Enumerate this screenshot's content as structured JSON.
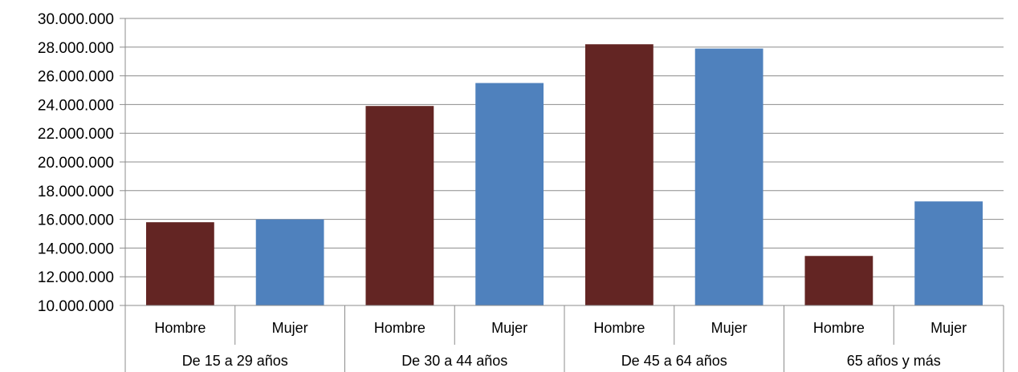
{
  "chart_data": {
    "type": "bar",
    "groups": [
      "De 15 a 29 años",
      "De 30 a 44 años",
      "De 45 a 64 años",
      "65 años y más"
    ],
    "subcategories": [
      "Hombre",
      "Mujer"
    ],
    "values": [
      [
        15800000,
        16000000
      ],
      [
        23900000,
        25500000
      ],
      [
        28200000,
        27900000
      ],
      [
        13450000,
        17250000
      ]
    ],
    "ylim": [
      10000000,
      30000000
    ],
    "yticks": [
      10000000,
      12000000,
      14000000,
      16000000,
      18000000,
      20000000,
      22000000,
      24000000,
      26000000,
      28000000,
      30000000
    ],
    "ytick_labels": [
      "10.000.000",
      "12.000.000",
      "14.000.000",
      "16.000.000",
      "18.000.000",
      "20.000.000",
      "22.000.000",
      "24.000.000",
      "26.000.000",
      "28.000.000",
      "30.000.000"
    ],
    "colors": {
      "Hombre": "#632523",
      "Mujer": "#4f81bd"
    },
    "grid": true
  }
}
